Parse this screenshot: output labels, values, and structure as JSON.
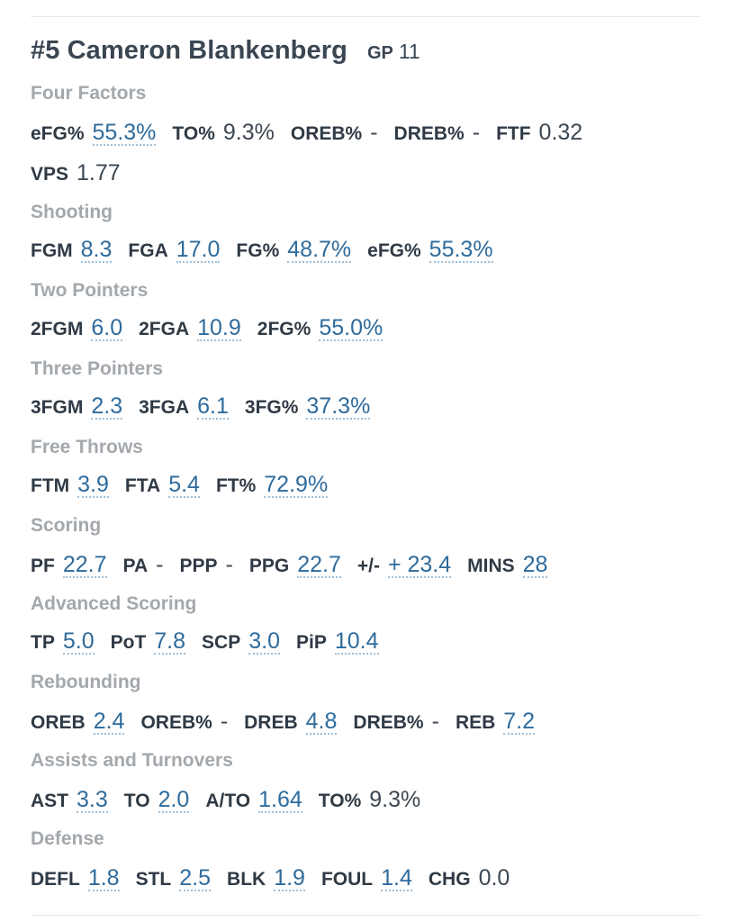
{
  "player": {
    "number_name": "#5 Cameron Blankenberg",
    "gp_label": "GP",
    "gp_value": "11"
  },
  "sections": [
    {
      "title": "Four Factors",
      "rows": [
        [
          {
            "label": "eFG%",
            "value": "55.3%",
            "link": true
          },
          {
            "label": "TO%",
            "value": "9.3%",
            "link": false
          },
          {
            "label": "OREB%",
            "value": "-",
            "link": false
          },
          {
            "label": "DREB%",
            "value": "-",
            "link": false
          },
          {
            "label": "FTF",
            "value": "0.32",
            "link": false
          }
        ],
        [
          {
            "label": "VPS",
            "value": "1.77",
            "link": false
          }
        ]
      ]
    },
    {
      "title": "Shooting",
      "rows": [
        [
          {
            "label": "FGM",
            "value": "8.3",
            "link": true
          },
          {
            "label": "FGA",
            "value": "17.0",
            "link": true
          },
          {
            "label": "FG%",
            "value": "48.7%",
            "link": true
          },
          {
            "label": "eFG%",
            "value": "55.3%",
            "link": true
          }
        ]
      ]
    },
    {
      "title": "Two Pointers",
      "rows": [
        [
          {
            "label": "2FGM",
            "value": "6.0",
            "link": true
          },
          {
            "label": "2FGA",
            "value": "10.9",
            "link": true
          },
          {
            "label": "2FG%",
            "value": "55.0%",
            "link": true
          }
        ]
      ]
    },
    {
      "title": "Three Pointers",
      "rows": [
        [
          {
            "label": "3FGM",
            "value": "2.3",
            "link": true
          },
          {
            "label": "3FGA",
            "value": "6.1",
            "link": true
          },
          {
            "label": "3FG%",
            "value": "37.3%",
            "link": true
          }
        ]
      ]
    },
    {
      "title": "Free Throws",
      "rows": [
        [
          {
            "label": "FTM",
            "value": "3.9",
            "link": true
          },
          {
            "label": "FTA",
            "value": "5.4",
            "link": true
          },
          {
            "label": "FT%",
            "value": "72.9%",
            "link": true
          }
        ]
      ]
    },
    {
      "title": "Scoring",
      "rows": [
        [
          {
            "label": "PF",
            "value": "22.7",
            "link": true
          },
          {
            "label": "PA",
            "value": "-",
            "link": false
          },
          {
            "label": "PPP",
            "value": "-",
            "link": false
          },
          {
            "label": "PPG",
            "value": "22.7",
            "link": true
          },
          {
            "label": "+/-",
            "value": "+ 23.4",
            "link": true
          },
          {
            "label": "MINS",
            "value": "28",
            "link": true
          }
        ]
      ]
    },
    {
      "title": "Advanced Scoring",
      "rows": [
        [
          {
            "label": "TP",
            "value": "5.0",
            "link": true
          },
          {
            "label": "PoT",
            "value": "7.8",
            "link": true
          },
          {
            "label": "SCP",
            "value": "3.0",
            "link": true
          },
          {
            "label": "PiP",
            "value": "10.4",
            "link": true
          }
        ]
      ]
    },
    {
      "title": "Rebounding",
      "rows": [
        [
          {
            "label": "OREB",
            "value": "2.4",
            "link": true
          },
          {
            "label": "OREB%",
            "value": "-",
            "link": false
          },
          {
            "label": "DREB",
            "value": "4.8",
            "link": true
          },
          {
            "label": "DREB%",
            "value": "-",
            "link": false
          },
          {
            "label": "REB",
            "value": "7.2",
            "link": true
          }
        ]
      ]
    },
    {
      "title": "Assists and Turnovers",
      "rows": [
        [
          {
            "label": "AST",
            "value": "3.3",
            "link": true
          },
          {
            "label": "TO",
            "value": "2.0",
            "link": true
          },
          {
            "label": "A/TO",
            "value": "1.64",
            "link": true
          },
          {
            "label": "TO%",
            "value": "9.3%",
            "link": false
          }
        ]
      ]
    },
    {
      "title": "Defense",
      "rows": [
        [
          {
            "label": "DEFL",
            "value": "1.8",
            "link": true
          },
          {
            "label": "STL",
            "value": "2.5",
            "link": true
          },
          {
            "label": "BLK",
            "value": "1.9",
            "link": true
          },
          {
            "label": "FOUL",
            "value": "1.4",
            "link": true
          },
          {
            "label": "CHG",
            "value": "0.0",
            "link": false
          }
        ]
      ]
    }
  ],
  "colors": {
    "link_value": "#2e6b9c",
    "section_title": "#a3a8ad",
    "label": "#2f3a45"
  }
}
